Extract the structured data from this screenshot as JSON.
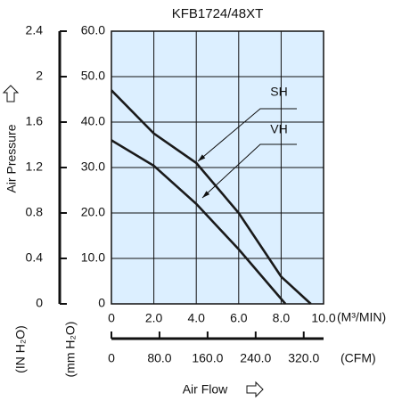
{
  "chart_data": {
    "type": "line",
    "title": "KFB1724/48XT",
    "ylabel": "Air Pressure",
    "ylabel_units": "(mm H₂O)",
    "y2label_units": "(IN H₂O)",
    "xlabel": "Air Flow",
    "xlabel_units": "(M³/MIN)",
    "x2label_units": "(CFM)",
    "xlim": [
      0,
      10
    ],
    "xticks": [
      0,
      {
        "value": 2,
        "label": "2.0"
      },
      {
        "value": 4,
        "label": "4.0"
      },
      {
        "value": 6,
        "label": "6.0"
      },
      {
        "value": 8,
        "label": "8.0"
      },
      {
        "value": 10,
        "label": "10.0"
      }
    ],
    "x2lim": [
      0,
      353
    ],
    "x2ticks": [
      0,
      {
        "value": 80,
        "label": "80.0"
      },
      {
        "value": 160,
        "label": "160.0"
      },
      {
        "value": 240,
        "label": "240.0"
      },
      {
        "value": 320,
        "label": "320.0"
      }
    ],
    "ylim": [
      0,
      60
    ],
    "yticks": [
      0,
      {
        "value": 10,
        "label": "10.0"
      },
      {
        "value": 20,
        "label": "20.0"
      },
      {
        "value": 30,
        "label": "30.0"
      },
      {
        "value": 40,
        "label": "40.0"
      },
      {
        "value": 50,
        "label": "50.0"
      },
      {
        "value": 60,
        "label": "60.0"
      }
    ],
    "y2lim": [
      0,
      2.4
    ],
    "y2ticks": [
      0,
      0.4,
      0.8,
      1.2,
      1.6,
      2,
      2.4
    ],
    "grid": true,
    "series": [
      {
        "name": "SH",
        "color": "#1a1a1a",
        "x": [
          0,
          2,
          4,
          6,
          8,
          9.4
        ],
        "values": [
          47,
          37.5,
          31,
          20,
          6,
          0
        ]
      },
      {
        "name": "VH",
        "color": "#1a1a1a",
        "x": [
          0,
          2,
          4,
          6,
          8.2
        ],
        "values": [
          36,
          30.4,
          22,
          12,
          0
        ]
      }
    ]
  }
}
